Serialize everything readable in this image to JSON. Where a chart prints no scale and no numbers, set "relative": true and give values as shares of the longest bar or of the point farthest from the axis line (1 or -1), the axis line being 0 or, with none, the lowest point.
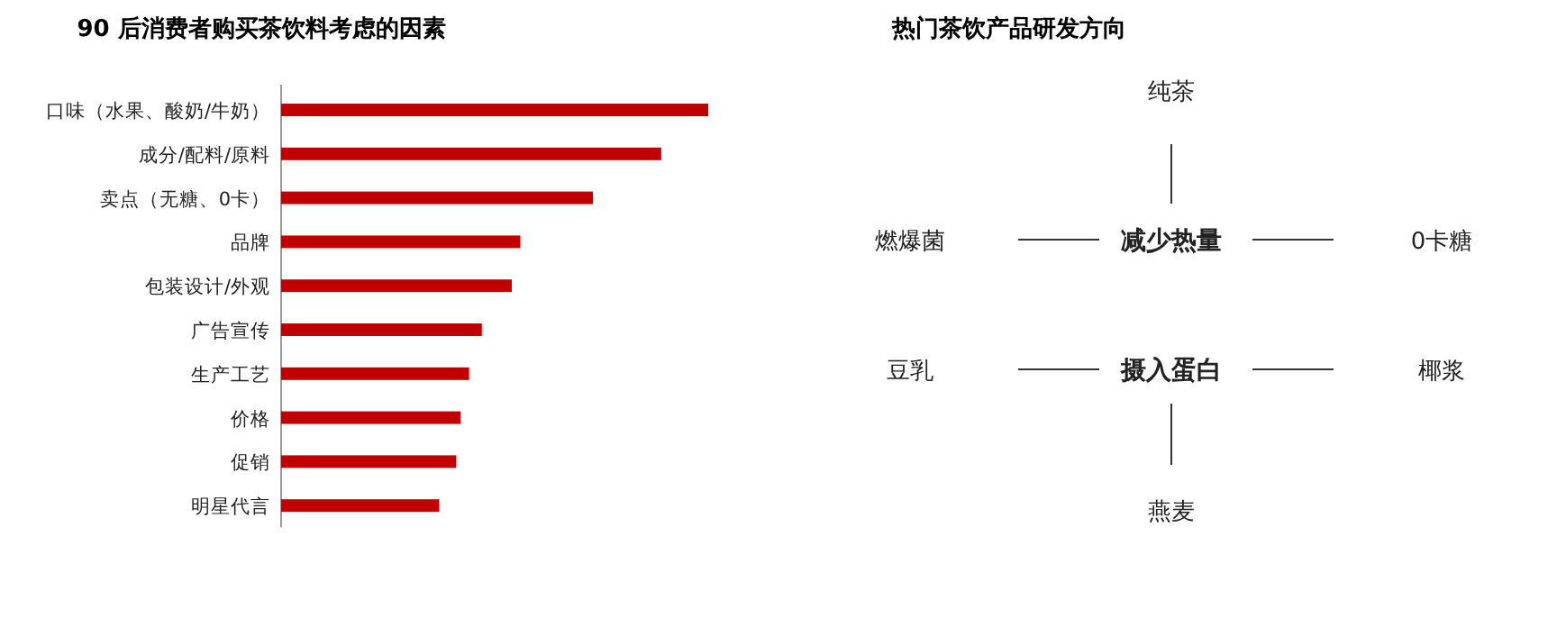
{
  "chart_data": [
    {
      "type": "bar",
      "title": "90 后消费者购买茶饮料考虑的因素",
      "orientation": "horizontal",
      "relative": true,
      "color": "#c00000",
      "categories": [
        "口味（水果、酸奶/牛奶）",
        "成分/配料/原料",
        "卖点（无糖、0卡）",
        "品牌",
        "包装设计/外观",
        "广告宣传",
        "生产工艺",
        "价格",
        "促销",
        "明星代言"
      ],
      "values": [
        1,
        0.89,
        0.73,
        0.56,
        0.54,
        0.47,
        0.44,
        0.42,
        0.41,
        0.37
      ]
    },
    {
      "type": "other",
      "title": "热门茶饮产品研发方向",
      "annotations": [
        "纯茶",
        "燃爆菌",
        "减少热量",
        "0卡糖",
        "豆乳",
        "摄入蛋白",
        "椰浆",
        "燕麦"
      ]
    }
  ]
}
